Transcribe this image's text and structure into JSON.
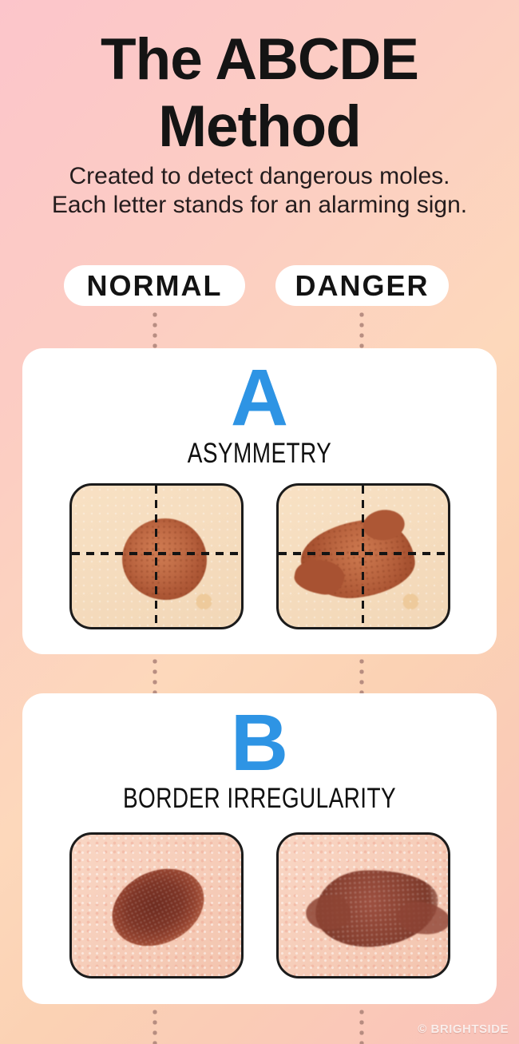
{
  "poster": {
    "title_line1": "The ABCDE",
    "title_line2": "Method",
    "subtitle_line1": "Created to detect dangerous moles.",
    "subtitle_line2": "Each letter stands for an alarming sign.",
    "watermark": "© BRIGHTSIDE"
  },
  "column_headers": {
    "normal": "NORMAL",
    "danger": "DANGER"
  },
  "sections": [
    {
      "letter": "A",
      "label": "ASYMMETRY"
    },
    {
      "letter": "B",
      "label": "BORDER IRREGULARITY"
    }
  ],
  "icons": {
    "section_a_normal": "round-symmetric-mole-with-dashed-crosshair",
    "section_a_danger": "irregular-asymmetric-mole-with-dashed-crosshair",
    "section_b_normal": "smooth-border-oval-mole",
    "section_b_danger": "ragged-irregular-border-mole",
    "connector": "vertical-dotted-line"
  },
  "colors": {
    "accent_letter_blue": "#2e94e4",
    "background_pink": "#fcc5cb",
    "background_peach": "#fdd8bb",
    "background_bottom_pink": "#f9c2ba",
    "card_white": "#ffffff",
    "dot_connector": "#ab8177",
    "title_text": "#141414"
  }
}
